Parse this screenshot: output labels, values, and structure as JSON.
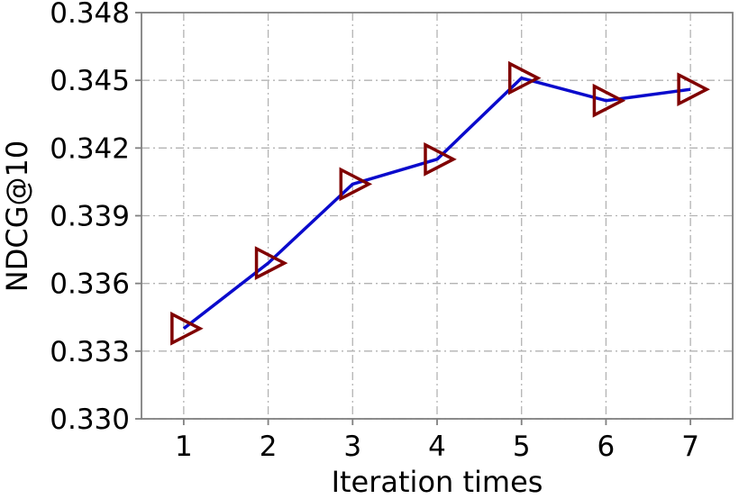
{
  "chart_data": {
    "type": "line",
    "xlabel": "Iteration times",
    "ylabel": "NDCG@10",
    "x": [
      1,
      2,
      3,
      4,
      5,
      6,
      7
    ],
    "x_tick_labels": [
      "1",
      "2",
      "3",
      "4",
      "5",
      "6",
      "7"
    ],
    "xlim": [
      0.5,
      7.5
    ],
    "y_ticks": [
      0.33,
      0.333,
      0.336,
      0.339,
      0.342,
      0.345,
      0.348
    ],
    "y_tick_labels": [
      "0.330",
      "0.333",
      "0.336",
      "0.339",
      "0.342",
      "0.345",
      "0.348"
    ],
    "ylim": [
      0.33,
      0.348
    ],
    "grid": true,
    "series": [
      {
        "values": [
          0.334,
          0.3369,
          0.3404,
          0.3415,
          0.3451,
          0.3441,
          0.3446
        ],
        "line_color": "#0a0acc",
        "marker": "triangle-right",
        "marker_color": "#800000"
      }
    ]
  }
}
